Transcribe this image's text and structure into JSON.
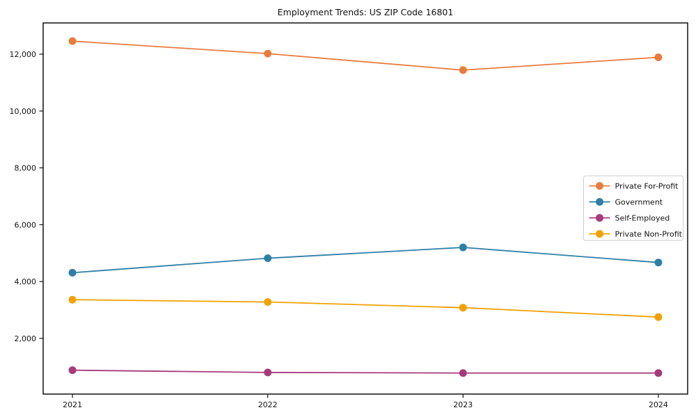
{
  "window": {
    "background_color": "#ffffff",
    "frame_color": "#000000",
    "text_color": "#111111",
    "legend_border_color": "#cccccc"
  },
  "chart_data": {
    "type": "line",
    "title": "Employment Trends: US ZIP Code 16801",
    "xlabel": "",
    "ylabel": "",
    "x": [
      2021,
      2022,
      2023,
      2024
    ],
    "x_tick_labels": [
      "2021",
      "2022",
      "2023",
      "2024"
    ],
    "series": [
      {
        "name": "Private For-Profit",
        "color": "#E87C3C",
        "values": [
          12460,
          12020,
          11440,
          11890
        ]
      },
      {
        "name": "Government",
        "color": "#2E7FA7",
        "values": [
          4310,
          4820,
          5200,
          4670
        ]
      },
      {
        "name": "Self-Employed",
        "color": "#A63A7B",
        "values": [
          880,
          800,
          780,
          780
        ]
      },
      {
        "name": "Private Non-Profit",
        "color": "#F2A104",
        "values": [
          3360,
          3280,
          3080,
          2750
        ]
      }
    ],
    "yticks": [
      2000,
      4000,
      6000,
      8000,
      10000,
      12000
    ],
    "ytick_labels": [
      "2,000",
      "4,000",
      "6,000",
      "8,000",
      "10,000",
      "12,000"
    ],
    "ylim": [
      40,
      13100
    ],
    "xlim": [
      2020.85,
      2024.15
    ],
    "grid": false,
    "legend_position": "center-right",
    "marker": "circle",
    "marker_radius": 5.5,
    "line_width": 1.8
  }
}
